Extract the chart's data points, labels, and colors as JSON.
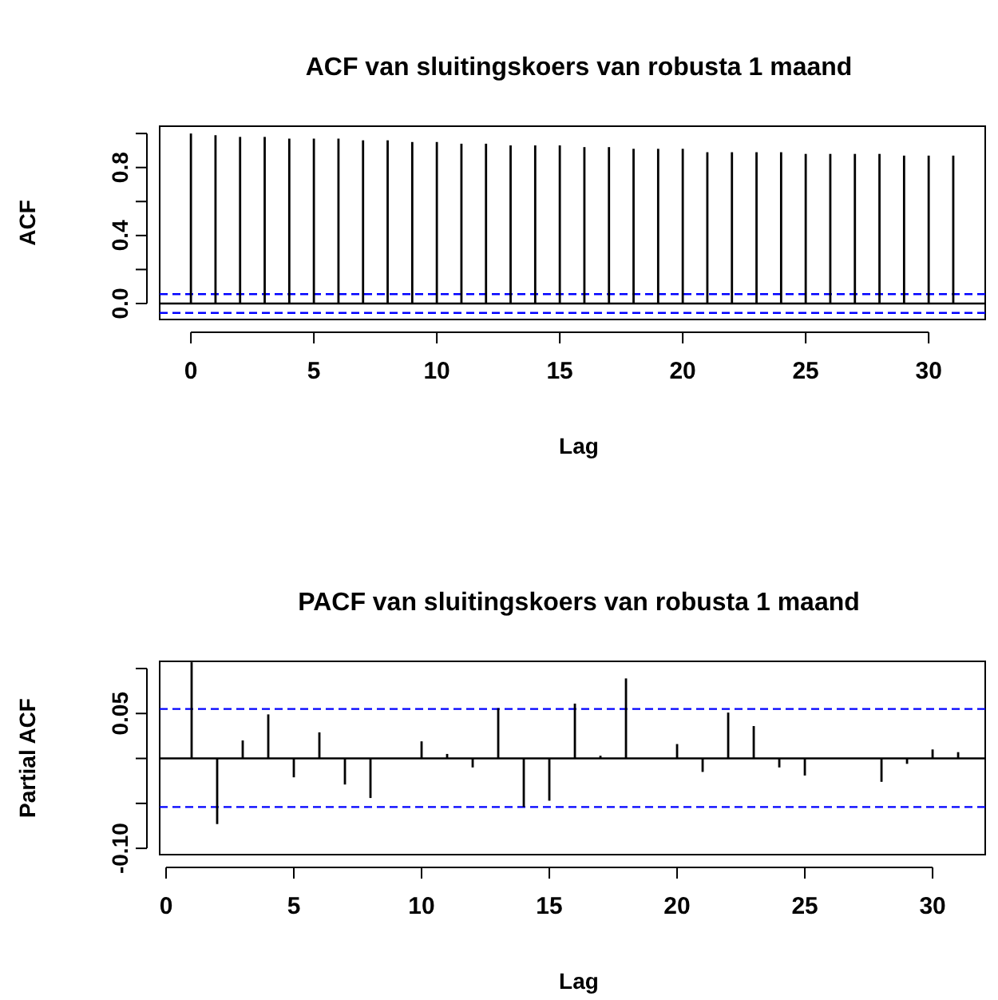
{
  "chart_data": [
    {
      "type": "bar",
      "title": "ACF van sluitingskoers van robusta 1 maand",
      "xlabel": "Lag",
      "ylabel": "ACF",
      "x": [
        0,
        1,
        2,
        3,
        4,
        5,
        6,
        7,
        8,
        9,
        10,
        11,
        12,
        13,
        14,
        15,
        16,
        17,
        18,
        19,
        20,
        21,
        22,
        23,
        24,
        25,
        26,
        27,
        28,
        29,
        30,
        31
      ],
      "values": [
        1.0,
        0.99,
        0.98,
        0.98,
        0.97,
        0.97,
        0.97,
        0.96,
        0.96,
        0.95,
        0.95,
        0.94,
        0.94,
        0.93,
        0.93,
        0.93,
        0.92,
        0.92,
        0.91,
        0.91,
        0.91,
        0.89,
        0.89,
        0.89,
        0.89,
        0.88,
        0.88,
        0.88,
        0.88,
        0.87,
        0.87,
        0.87
      ],
      "color": "#000000",
      "xlim": [
        -1.27,
        32.3
      ],
      "xticks": [
        0,
        5,
        10,
        15,
        20,
        25,
        30
      ],
      "ylim": [
        -0.094,
        1.043
      ],
      "yticks": [
        {
          "value": 0,
          "label": "0.0"
        },
        {
          "value": 0.2,
          "label": null
        },
        0.4,
        {
          "value": 0.6,
          "label": null
        },
        0.8,
        {
          "value": 1.0,
          "label": null
        }
      ],
      "ref_lines": [
        {
          "axis": "y",
          "value": 0,
          "color": "#000000",
          "line_style": "solid"
        },
        {
          "axis": "y",
          "value": 0.055,
          "color": "#0000ff",
          "line_style": "dashed"
        },
        {
          "axis": "y",
          "value": -0.055,
          "color": "#0000ff",
          "line_style": "dashed"
        }
      ]
    },
    {
      "type": "bar",
      "title": "PACF van sluitingskoers van robusta 1 maand",
      "xlabel": "Lag",
      "ylabel": "Partial ACF",
      "x": [
        1,
        2,
        3,
        4,
        5,
        6,
        7,
        8,
        9,
        10,
        11,
        12,
        13,
        14,
        15,
        16,
        17,
        18,
        19,
        20,
        21,
        22,
        23,
        24,
        25,
        26,
        27,
        28,
        29,
        30,
        31
      ],
      "values": [
        0.107,
        -0.073,
        0.02,
        0.049,
        -0.021,
        0.029,
        -0.029,
        -0.044,
        0,
        0.019,
        0.005,
        -0.01,
        0.056,
        -0.054,
        -0.047,
        0.061,
        0.003,
        0.089,
        0,
        0.016,
        -0.015,
        0.051,
        0.036,
        -0.01,
        -0.019,
        0,
        0,
        -0.026,
        -0.006,
        0.01,
        0.007
      ],
      "color": "#000000",
      "xlim": [
        -0.25,
        32.06
      ],
      "xticks": [
        0,
        5,
        10,
        15,
        20,
        25,
        30
      ],
      "ylim": [
        -0.107,
        0.108
      ],
      "yticks": [
        {
          "value": -0.1,
          "label": "-0.10"
        },
        {
          "value": -0.05,
          "label": null
        },
        {
          "value": 0,
          "label": null
        },
        {
          "value": 0.05,
          "label": "0.05"
        },
        {
          "value": 0.1,
          "label": null
        }
      ],
      "ref_lines": [
        {
          "axis": "y",
          "value": 0,
          "color": "#000000",
          "line_style": "solid"
        },
        {
          "axis": "y",
          "value": 0.055,
          "color": "#0000ff",
          "line_style": "dashed"
        },
        {
          "axis": "y",
          "value": -0.054,
          "color": "#0000ff",
          "line_style": "dashed"
        }
      ]
    }
  ]
}
